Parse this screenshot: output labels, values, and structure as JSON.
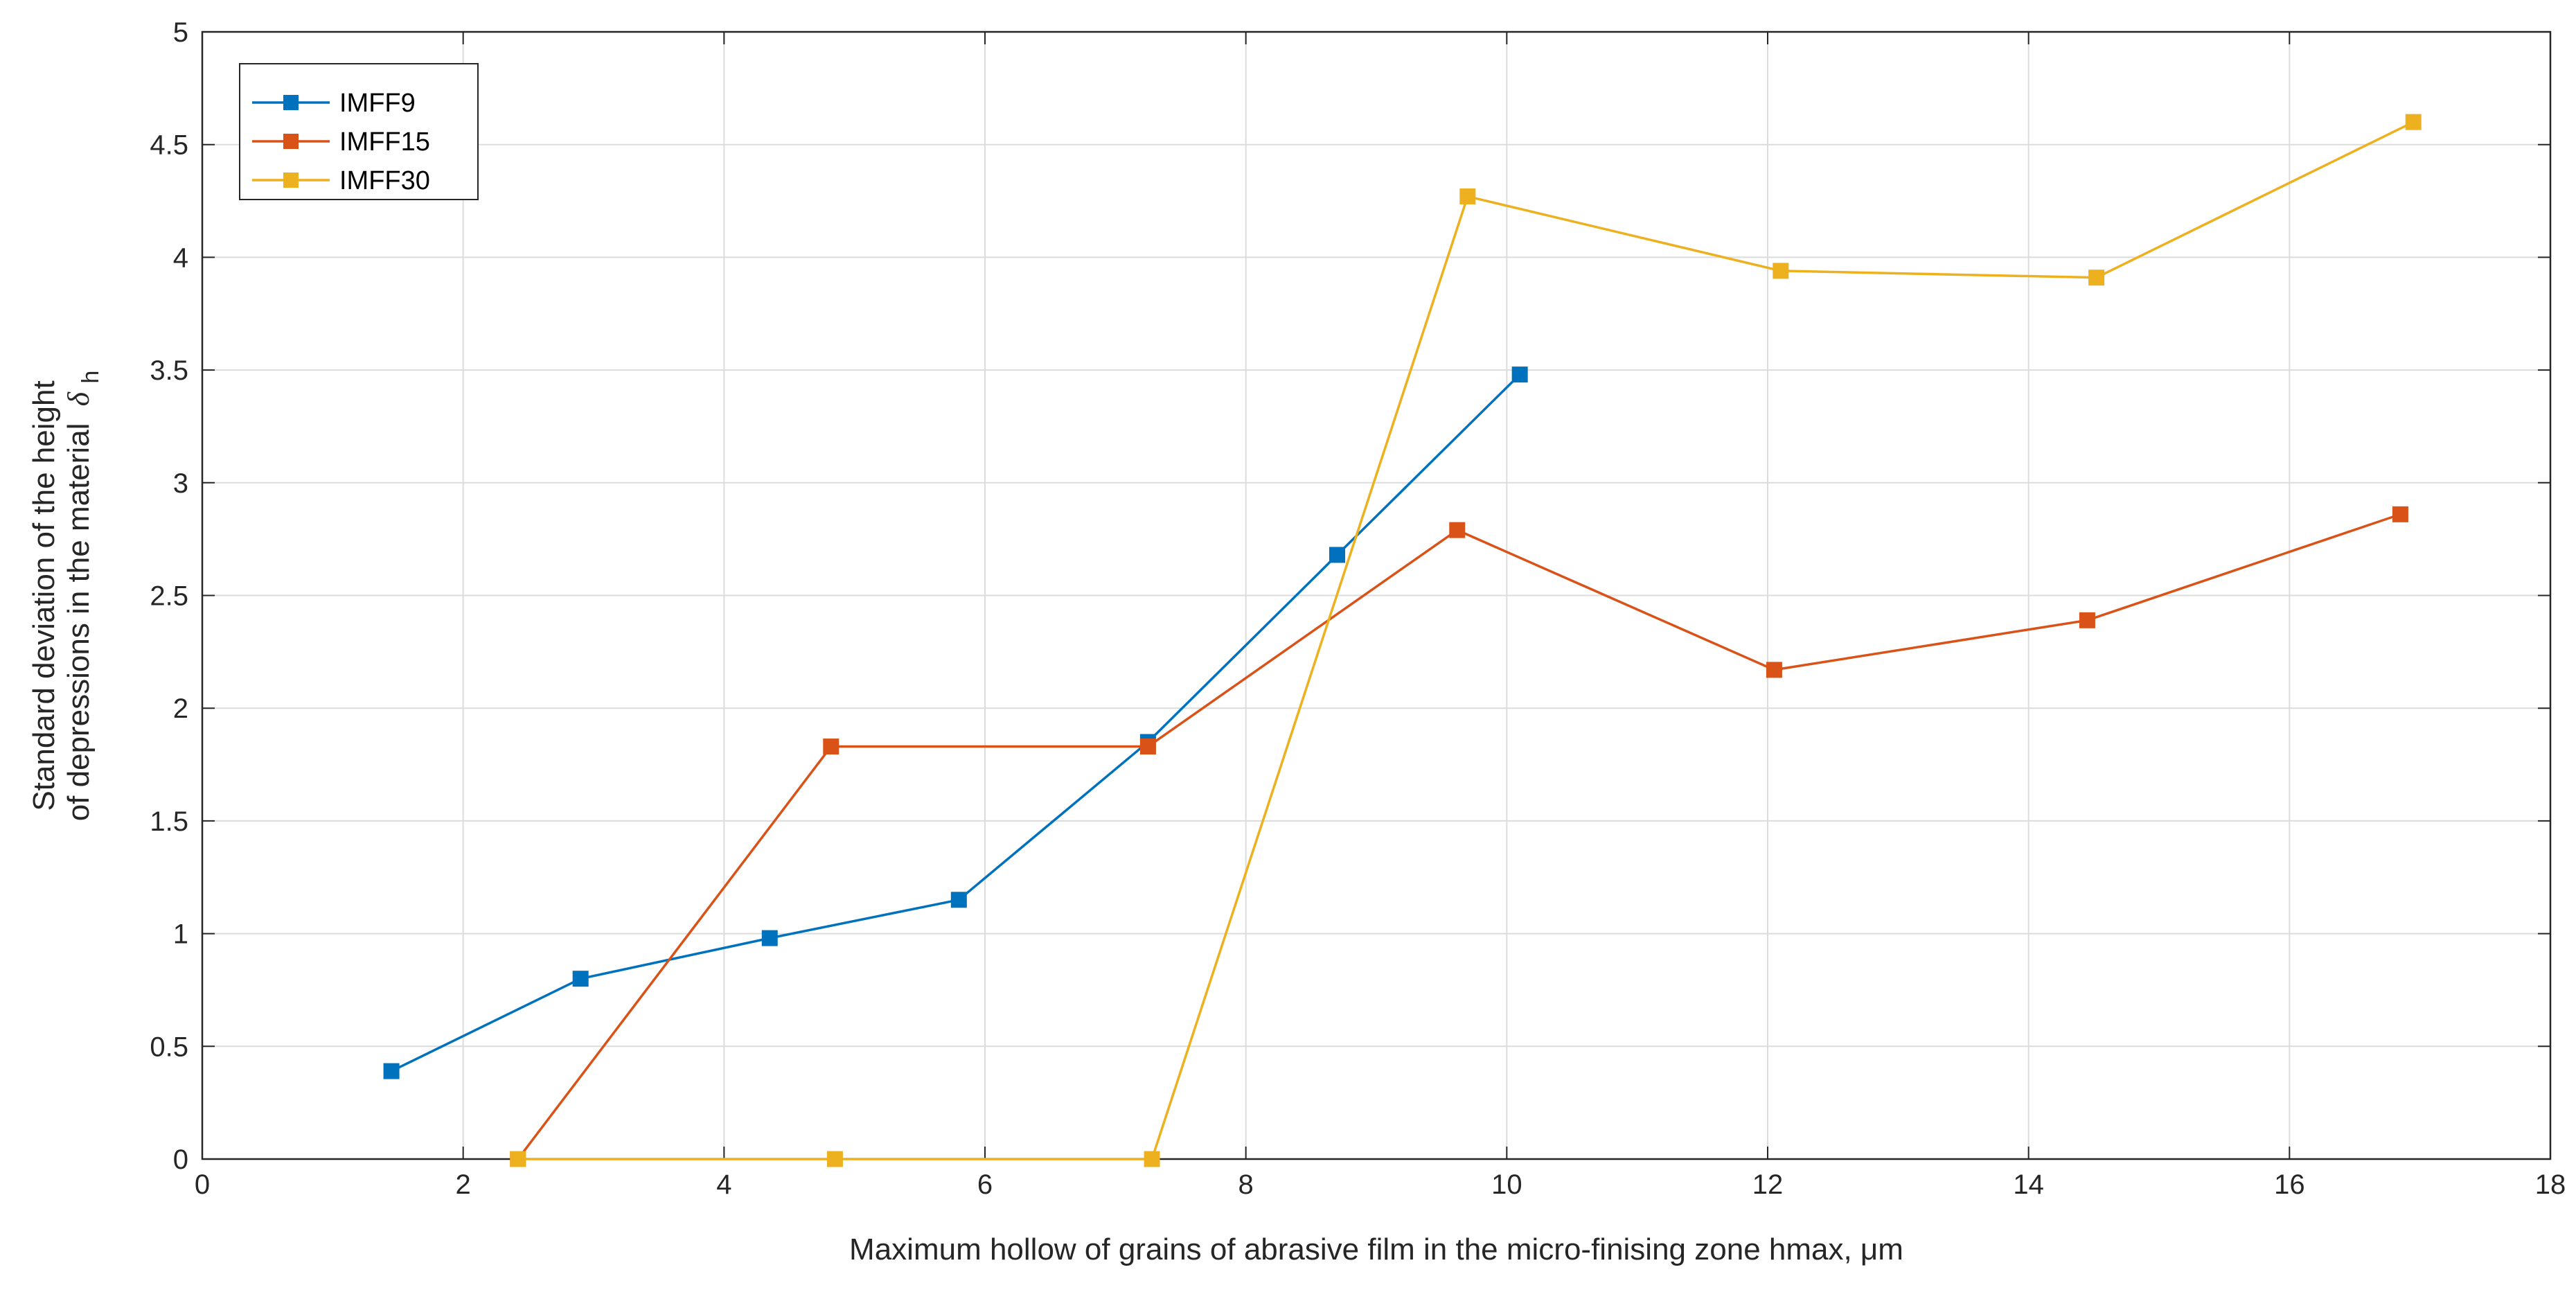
{
  "chart_data": {
    "type": "line",
    "title": "",
    "xlabel": "Maximum hollow of grains of abrasive film in the micro-finising zone hmax, μm",
    "ylabel_line1": "Standard deviation of the height",
    "ylabel_line2": "of depressions in the material",
    "ylabel_symbol": "δ",
    "ylabel_subscript": "h",
    "xlim": [
      0,
      18
    ],
    "ylim": [
      0,
      5
    ],
    "xticks": [
      0,
      2,
      4,
      6,
      8,
      10,
      12,
      14,
      16,
      18
    ],
    "yticks": [
      0,
      0.5,
      1,
      1.5,
      2,
      2.5,
      3,
      3.5,
      4,
      4.5,
      5
    ],
    "grid": true,
    "legend_position": "top-left",
    "series": [
      {
        "name": "IMFF9",
        "color": "#0072BD",
        "x": [
          1.45,
          2.9,
          4.35,
          5.8,
          7.25,
          8.7,
          10.1
        ],
        "y": [
          0.39,
          0.8,
          0.98,
          1.15,
          1.85,
          2.68,
          3.48
        ]
      },
      {
        "name": "IMFF15",
        "color": "#D95319",
        "x": [
          2.42,
          4.82,
          7.25,
          9.62,
          12.05,
          14.45,
          16.85
        ],
        "y": [
          0.0,
          1.83,
          1.83,
          2.79,
          2.17,
          2.39,
          2.86
        ]
      },
      {
        "name": "IMFF30",
        "color": "#EDB120",
        "x": [
          2.42,
          4.85,
          7.28,
          9.7,
          12.1,
          14.52,
          16.95
        ],
        "y": [
          0.0,
          0.0,
          0.0,
          4.27,
          3.94,
          3.91,
          4.6
        ]
      }
    ]
  }
}
